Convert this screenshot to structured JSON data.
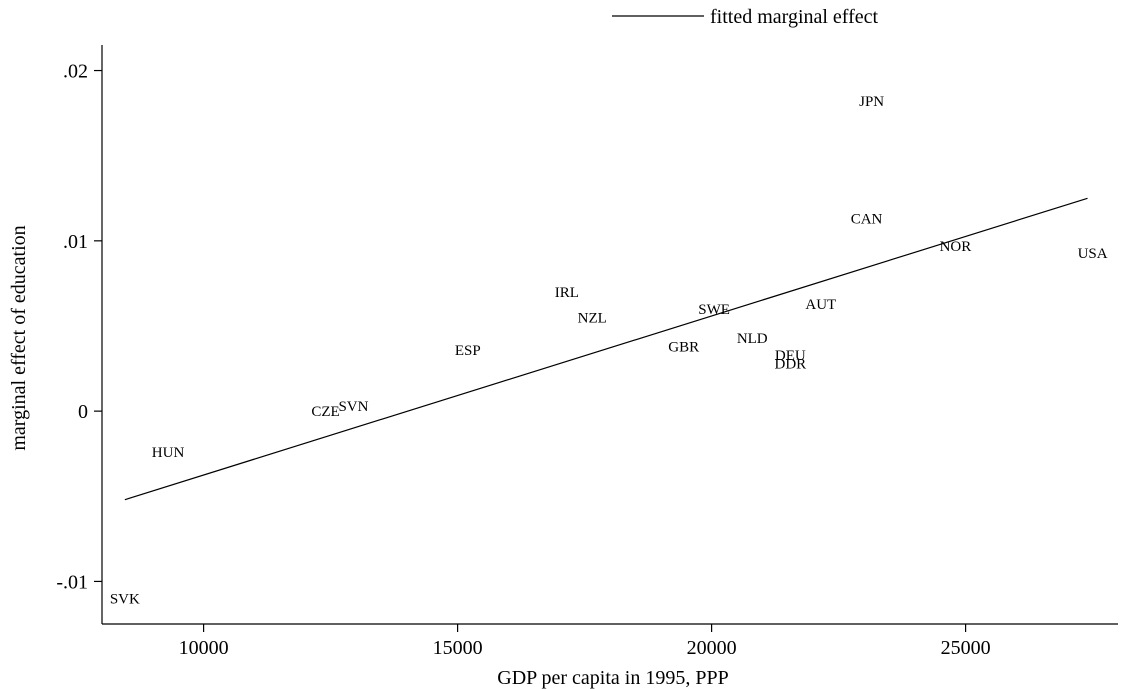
{
  "chart_data": {
    "type": "scatter",
    "title": "",
    "xlabel": "GDP per capita in 1995, PPP",
    "ylabel": "marginal effect of education",
    "xlim": [
      8000,
      28000
    ],
    "ylim": [
      -0.0125,
      0.0215
    ],
    "x_ticks": [
      {
        "value": 10000,
        "label": "10000"
      },
      {
        "value": 15000,
        "label": "15000"
      },
      {
        "value": 20000,
        "label": "20000"
      },
      {
        "value": 25000,
        "label": "25000"
      }
    ],
    "y_ticks": [
      {
        "value": 0.02,
        "label": ".02"
      },
      {
        "value": 0.01,
        "label": ".01"
      },
      {
        "value": 0,
        "label": "0"
      },
      {
        "value": -0.01,
        "label": "-.01"
      }
    ],
    "points": [
      {
        "label": "SVK",
        "x": 8450,
        "y": -0.011
      },
      {
        "label": "HUN",
        "x": 9300,
        "y": -0.0024
      },
      {
        "label": "CZE",
        "x": 12400,
        "y": 0.0
      },
      {
        "label": "SVN",
        "x": 12950,
        "y": 0.0003
      },
      {
        "label": "ESP",
        "x": 15200,
        "y": 0.0036
      },
      {
        "label": "IRL",
        "x": 17150,
        "y": 0.007
      },
      {
        "label": "NZL",
        "x": 17650,
        "y": 0.0055
      },
      {
        "label": "GBR",
        "x": 19450,
        "y": 0.0038
      },
      {
        "label": "SWE",
        "x": 20050,
        "y": 0.006
      },
      {
        "label": "NLD",
        "x": 20800,
        "y": 0.0043
      },
      {
        "label": "DEU",
        "x": 21550,
        "y": 0.0033
      },
      {
        "label": "DDR",
        "x": 21550,
        "y": 0.0028
      },
      {
        "label": "AUT",
        "x": 22150,
        "y": 0.0063
      },
      {
        "label": "CAN",
        "x": 23050,
        "y": 0.0113
      },
      {
        "label": "JPN",
        "x": 23150,
        "y": 0.0182
      },
      {
        "label": "NOR",
        "x": 24800,
        "y": 0.0097
      },
      {
        "label": "USA",
        "x": 27500,
        "y": 0.0093
      }
    ],
    "fit_line": {
      "name": "fitted marginal effect",
      "x": [
        8450,
        27400
      ],
      "y": [
        -0.0052,
        0.0125
      ]
    },
    "legend": {
      "position": "top-right",
      "entries": [
        "fitted marginal effect"
      ]
    },
    "grid": false
  }
}
